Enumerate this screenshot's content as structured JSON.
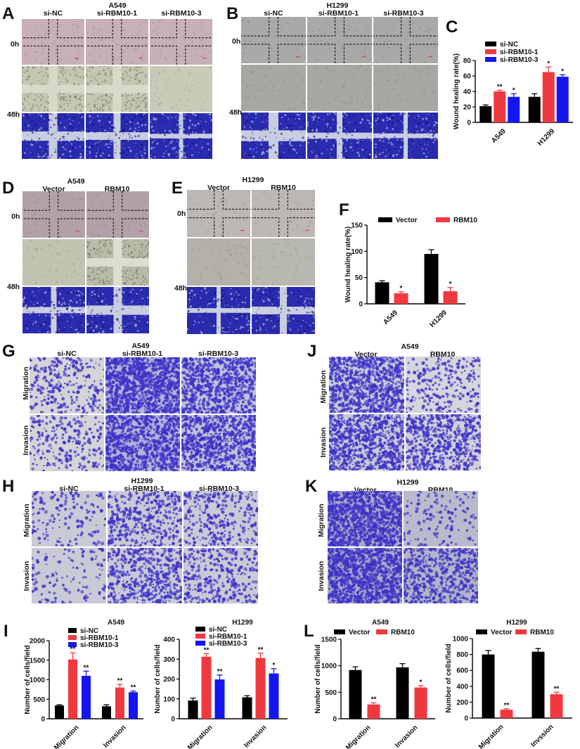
{
  "panels": {
    "A": {
      "label": "A",
      "cell_line": "A549",
      "columns": [
        "si-NC",
        "si-RBM10-1",
        "si-RBM10-3"
      ],
      "rows": [
        "0h",
        "48h"
      ]
    },
    "B": {
      "label": "B",
      "cell_line": "H1299",
      "columns": [
        "si-NC",
        "si-RBM10-1",
        "si-RBM10-3"
      ],
      "rows": [
        "0h",
        "48h"
      ]
    },
    "C": {
      "label": "C"
    },
    "D": {
      "label": "D",
      "cell_line": "A549",
      "columns": [
        "Vector",
        "RBM10"
      ],
      "rows": [
        "0h",
        "48h"
      ]
    },
    "E": {
      "label": "E",
      "cell_line": "H1299",
      "columns": [
        "Vector",
        "RBM10"
      ],
      "rows": [
        "0h",
        "48h"
      ]
    },
    "F": {
      "label": "F"
    },
    "G": {
      "label": "G",
      "cell_line": "A549",
      "columns": [
        "si-NC",
        "si-RBM10-1",
        "si-RBM10-3"
      ],
      "rows": [
        "Migration",
        "Invasion"
      ]
    },
    "H": {
      "label": "H",
      "cell_line": "H1299",
      "columns": [
        "si-NC",
        "si-RBM10-1",
        "si-RBM10-3"
      ],
      "rows": [
        "Migration",
        "Invasion"
      ]
    },
    "I": {
      "label": "I"
    },
    "J": {
      "label": "J",
      "cell_line": "A549",
      "columns": [
        "Vector",
        "RBM10"
      ],
      "rows": [
        "Migration",
        "Invasion"
      ]
    },
    "K": {
      "label": "K",
      "cell_line": "H1299",
      "columns": [
        "Vector",
        "RBM10"
      ],
      "rows": [
        "Migration",
        "Invasion"
      ]
    },
    "L": {
      "label": "L"
    }
  },
  "colors": {
    "si_NC": "#000000",
    "si_RBM10_1": "#f0393f",
    "si_RBM10_3": "#1515f0",
    "Vector": "#000000",
    "RBM10": "#f0393f"
  },
  "chart_data": [
    {
      "id": "C",
      "type": "bar",
      "title": "",
      "categories": [
        "A549",
        "H1299"
      ],
      "series": [
        {
          "name": "si-NC",
          "values": [
            21,
            33
          ],
          "errors": [
            1.5,
            4
          ],
          "sig": [
            "",
            ""
          ]
        },
        {
          "name": "si-RBM10-1",
          "values": [
            40,
            65
          ],
          "errors": [
            1.5,
            6.5
          ],
          "sig": [
            "**",
            "*"
          ]
        },
        {
          "name": "si-RBM10-3",
          "values": [
            33,
            59
          ],
          "errors": [
            4,
            2.5
          ],
          "sig": [
            "*",
            "*"
          ]
        }
      ],
      "xlabel": "",
      "ylabel": "Wound healing rate(%)",
      "ylim": [
        0,
        80
      ],
      "yticks": [
        0,
        20,
        40,
        60,
        80
      ],
      "legend_position": "top-left",
      "grid": false
    },
    {
      "id": "F",
      "type": "bar",
      "title": "",
      "categories": [
        "A549",
        "H1299"
      ],
      "series": [
        {
          "name": "Vector",
          "values": [
            41,
            95
          ],
          "errors": [
            3,
            8
          ],
          "sig": [
            "",
            ""
          ]
        },
        {
          "name": "RBM10",
          "values": [
            20,
            24
          ],
          "errors": [
            3,
            7
          ],
          "sig": [
            "*",
            "*"
          ]
        }
      ],
      "xlabel": "",
      "ylabel": "Wound healing rate(%)",
      "ylim": [
        0,
        150
      ],
      "yticks": [
        0,
        50,
        100,
        150
      ],
      "legend_position": "top",
      "grid": false
    },
    {
      "id": "I-A549",
      "type": "bar",
      "title": "A549",
      "categories": [
        "Migration",
        "Invasion"
      ],
      "series": [
        {
          "name": "si-NC",
          "values": [
            340,
            320
          ],
          "errors": [
            20,
            40
          ],
          "sig": [
            "",
            ""
          ]
        },
        {
          "name": "si-RBM10-1",
          "values": [
            1520,
            800
          ],
          "errors": [
            170,
            80
          ],
          "sig": [
            "**",
            "**"
          ]
        },
        {
          "name": "si-RBM10-3",
          "values": [
            1100,
            680
          ],
          "errors": [
            120,
            30
          ],
          "sig": [
            "**",
            "**"
          ]
        }
      ],
      "xlabel": "",
      "ylabel": "Number of cells/field",
      "ylim": [
        0,
        2000
      ],
      "yticks": [
        0,
        500,
        1000,
        1500,
        2000
      ],
      "legend_position": "top-left",
      "grid": false
    },
    {
      "id": "I-H1299",
      "type": "bar",
      "title": "H1299",
      "categories": [
        "Migration",
        "Invasion"
      ],
      "series": [
        {
          "name": "si-NC",
          "values": [
            92,
            108
          ],
          "errors": [
            12,
            8
          ],
          "sig": [
            "",
            ""
          ]
        },
        {
          "name": "si-RBM10-1",
          "values": [
            312,
            306
          ],
          "errors": [
            16,
            24
          ],
          "sig": [
            "**",
            "**"
          ]
        },
        {
          "name": "si-RBM10-3",
          "values": [
            198,
            228
          ],
          "errors": [
            22,
            24
          ],
          "sig": [
            "**",
            "*"
          ]
        }
      ],
      "xlabel": "",
      "ylabel": "Number of cells/field",
      "ylim": [
        0,
        400
      ],
      "yticks": [
        0,
        100,
        200,
        300,
        400
      ],
      "legend_position": "top-left",
      "grid": false
    },
    {
      "id": "L-A549",
      "type": "bar",
      "title": "A549",
      "categories": [
        "Migration",
        "Invasion"
      ],
      "series": [
        {
          "name": "Vector",
          "values": [
            920,
            970
          ],
          "errors": [
            60,
            70
          ],
          "sig": [
            "",
            ""
          ]
        },
        {
          "name": "RBM10",
          "values": [
            270,
            590
          ],
          "errors": [
            30,
            35
          ],
          "sig": [
            "**",
            "*"
          ]
        }
      ],
      "xlabel": "",
      "ylabel": "Number of cells/field",
      "ylim": [
        0,
        1500
      ],
      "yticks": [
        0,
        500,
        1000,
        1500
      ],
      "legend_position": "top",
      "grid": false
    },
    {
      "id": "L-H1299",
      "type": "bar",
      "title": "H1299",
      "categories": [
        "Migration",
        "Invssion"
      ],
      "series": [
        {
          "name": "Vector",
          "values": [
            800,
            835
          ],
          "errors": [
            50,
            40
          ],
          "sig": [
            "",
            ""
          ]
        },
        {
          "name": "RBM10",
          "values": [
            105,
            300
          ],
          "errors": [
            12,
            25
          ],
          "sig": [
            "**",
            "**"
          ]
        }
      ],
      "xlabel": "",
      "ylabel": "Number of cells/field",
      "ylim": [
        0,
        1000
      ],
      "yticks": [
        0,
        200,
        400,
        600,
        800,
        1000
      ],
      "legend_position": "top",
      "grid": false
    }
  ]
}
